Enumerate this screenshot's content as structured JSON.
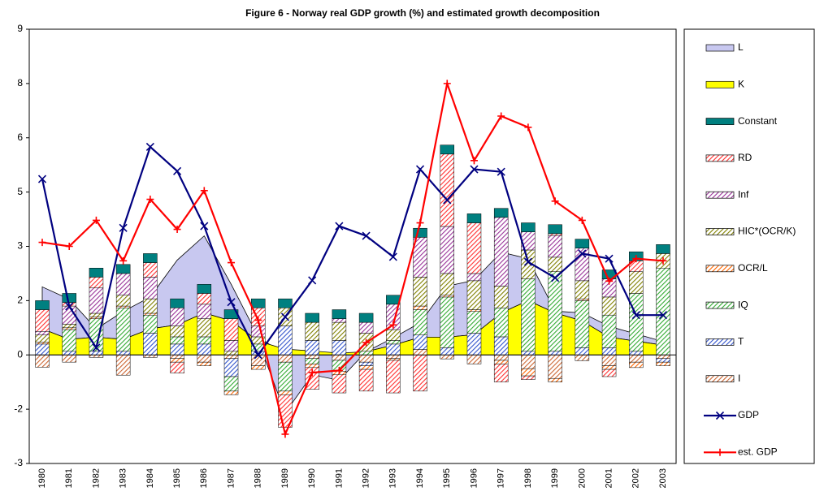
{
  "chart_data": {
    "type": "combo",
    "title": "Figure 6 - Norway real GDP growth (%) and estimated growth decomposition",
    "categories": [
      "1980",
      "1981",
      "1982",
      "1983",
      "1984",
      "1985",
      "1986",
      "1987",
      "1988",
      "1989",
      "1990",
      "1991",
      "1992",
      "1993",
      "1994",
      "1995",
      "1996",
      "1997",
      "1998",
      "1999",
      "2000",
      "2001",
      "2002",
      "2003"
    ],
    "ylim": [
      -3,
      9
    ],
    "yticks": [
      -3,
      {
        "value": -1.5,
        "label": "-2"
      },
      0,
      {
        "value": 1.5,
        "label": "2"
      },
      3,
      {
        "value": 4.5,
        "label": "5"
      },
      6,
      {
        "value": 7.5,
        "label": "8"
      },
      9
    ],
    "series": [
      {
        "name": "L",
        "type": "area",
        "color": "#c8c8f0",
        "values": [
          1.16,
          1.11,
          0.23,
          0.77,
          0.88,
          1.79,
          2.13,
          1.01,
          0.12,
          -1.6,
          -0.55,
          -0.7,
          0.0,
          0.2,
          0.4,
          1.41,
          1.5,
          1.68,
          1.16,
          0.05,
          0.22,
          0.3,
          0.2,
          0.1
        ]
      },
      {
        "name": "K",
        "type": "area",
        "color": "#ffff00",
        "values": [
          0.72,
          0.43,
          0.49,
          0.43,
          0.72,
          0.83,
          1.16,
          0.94,
          0.38,
          0.16,
          0.11,
          0.05,
          0.09,
          0.27,
          0.49,
          0.49,
          0.56,
          1.16,
          1.5,
          1.16,
          0.94,
          0.49,
          0.38,
          0.27
        ]
      },
      {
        "name": "Constant",
        "type": "bar",
        "hatch": false,
        "color": "#008080",
        "values": [
          0.25,
          0.25,
          0.25,
          0.25,
          0.25,
          0.25,
          0.25,
          0.25,
          0.25,
          0.25,
          0.25,
          0.25,
          0.25,
          0.25,
          0.25,
          0.25,
          0.25,
          0.25,
          0.25,
          0.25,
          0.25,
          0.25,
          0.25,
          0.25
        ]
      },
      {
        "name": "RD",
        "type": "bar",
        "hatch": true,
        "color": "#ff3030",
        "values": [
          0.6,
          0.1,
          0.3,
          0.0,
          0.4,
          -0.3,
          0.3,
          0.6,
          0.5,
          -0.9,
          -0.6,
          -0.5,
          -0.6,
          -0.9,
          -1.0,
          2.0,
          1.4,
          -0.5,
          -0.1,
          0.05,
          0.0,
          -0.2,
          0.3,
          0.0
        ]
      },
      {
        "name": "Inf",
        "type": "bar",
        "hatch": true,
        "color": "#993399",
        "values": [
          0.1,
          0.5,
          0.7,
          0.6,
          0.6,
          0.5,
          0.4,
          0.3,
          0.3,
          0.0,
          0.0,
          0.1,
          0.3,
          0.7,
          1.1,
          1.3,
          0.2,
          1.9,
          0.5,
          0.6,
          0.9,
          0.5,
          0.0,
          0.0
        ]
      },
      {
        "name": "HIC*(OCR/K)",
        "type": "bar",
        "hatch": true,
        "color": "#808000",
        "values": [
          0.2,
          0.1,
          0.1,
          0.3,
          0.4,
          0.3,
          0.5,
          0.1,
          0.2,
          0.5,
          0.5,
          0.5,
          0.5,
          0.3,
          0.8,
          0.6,
          0.8,
          0.6,
          0.8,
          0.4,
          0.5,
          0.5,
          0.6,
          0.4
        ]
      },
      {
        "name": "OCR/L",
        "type": "bar",
        "hatch": true,
        "color": "#ff6600",
        "values": [
          0.05,
          0.05,
          0.05,
          0.05,
          0.05,
          -0.1,
          -0.1,
          -0.1,
          -0.1,
          -0.1,
          -0.1,
          -0.1,
          -0.1,
          -0.05,
          0.1,
          0.05,
          0.05,
          -0.1,
          -0.2,
          -0.1,
          0.05,
          -0.1,
          -0.15,
          -0.1
        ]
      },
      {
        "name": "IQ",
        "type": "bar",
        "hatch": true,
        "color": "#33aa33",
        "values": [
          0.0,
          0.6,
          0.9,
          1.2,
          0.5,
          0.2,
          0.2,
          -0.4,
          0.2,
          -0.8,
          -0.15,
          -0.3,
          0.1,
          0.1,
          0.7,
          1.4,
          0.6,
          0.8,
          2.0,
          2.2,
          1.3,
          0.9,
          1.6,
          2.4
        ]
      },
      {
        "name": "T",
        "type": "bar",
        "hatch": true,
        "color": "#3355cc",
        "values": [
          0.3,
          0.1,
          0.1,
          0.1,
          0.6,
          0.3,
          0.3,
          -0.5,
          0.1,
          0.8,
          0.4,
          0.4,
          -0.1,
          0.3,
          0.4,
          0.2,
          0.6,
          0.5,
          0.1,
          0.1,
          0.2,
          0.2,
          0.1,
          -0.1
        ]
      },
      {
        "name": "I",
        "type": "bar",
        "hatch": true,
        "color": "#cc6633",
        "values": [
          -0.34,
          -0.2,
          -0.07,
          -0.56,
          -0.07,
          -0.1,
          -0.2,
          -0.1,
          -0.3,
          -0.2,
          -0.1,
          -0.15,
          -0.2,
          -0.1,
          0.15,
          -0.11,
          -0.25,
          -0.15,
          -0.38,
          -0.65,
          -0.16,
          -0.3,
          -0.2,
          -0.1
        ]
      },
      {
        "name": "GDP",
        "type": "line",
        "marker": "x",
        "color": "#000080",
        "values": [
          4.86,
          1.34,
          0.2,
          3.51,
          5.75,
          5.08,
          3.56,
          1.46,
          0.0,
          1.05,
          2.06,
          3.56,
          3.29,
          2.71,
          5.13,
          4.28,
          5.13,
          5.06,
          2.57,
          2.13,
          2.8,
          2.66,
          1.1,
          1.1
        ]
      },
      {
        "name": "est. GDP",
        "type": "line",
        "marker": "plus",
        "color": "#ff0000",
        "values": [
          3.11,
          3.0,
          3.72,
          2.6,
          4.3,
          3.47,
          4.54,
          2.55,
          0.96,
          -2.19,
          -0.49,
          -0.43,
          0.34,
          0.83,
          3.65,
          7.5,
          5.37,
          6.6,
          6.29,
          4.25,
          3.72,
          2.04,
          2.66,
          2.6
        ]
      }
    ]
  }
}
